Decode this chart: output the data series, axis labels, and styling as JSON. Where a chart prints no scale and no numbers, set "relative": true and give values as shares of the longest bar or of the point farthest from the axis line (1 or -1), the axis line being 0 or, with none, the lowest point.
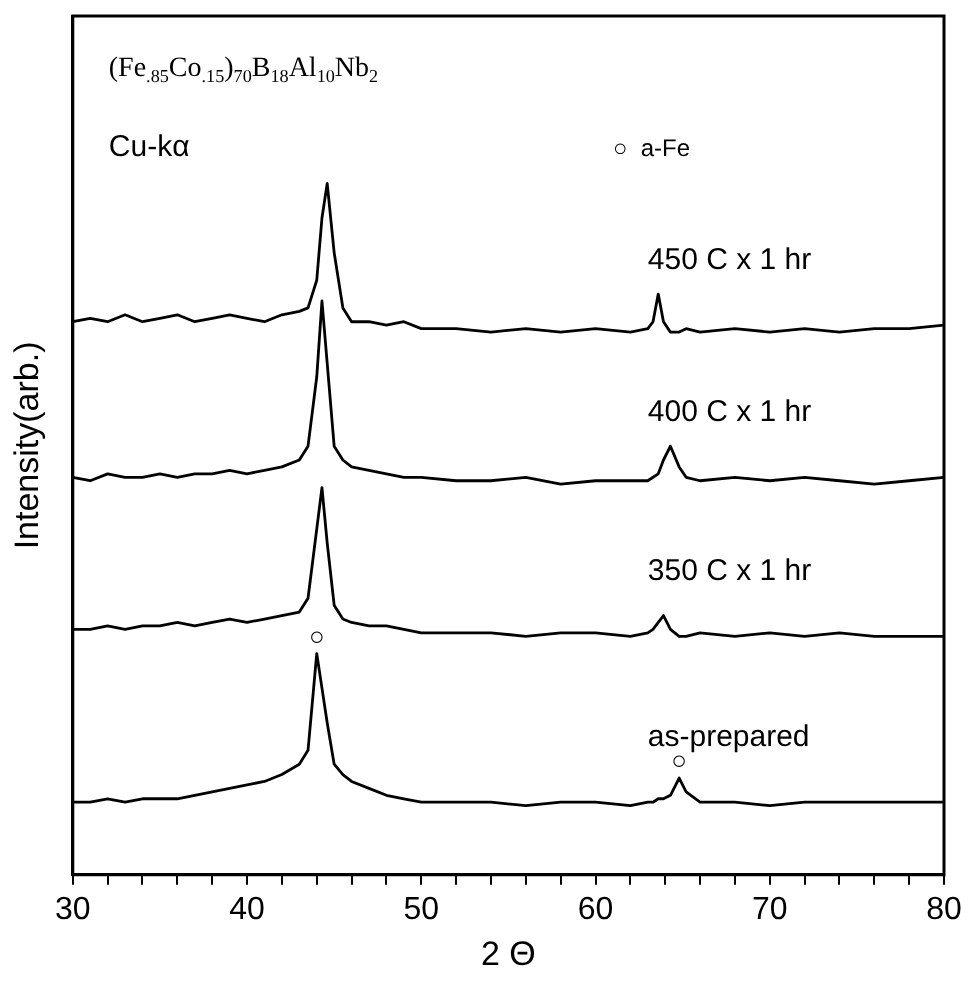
{
  "chart_data": {
    "type": "line",
    "title": "(Fe$_{.85}$Co$_{.15}$)$_{70}$B$_{18}$Al$_{10}$Nb$_{2}$",
    "xlabel": "2 Θ",
    "ylabel": "Intensity(arb.)",
    "relative": true,
    "legend": false,
    "grid": false,
    "marker": "none",
    "line_style": "solid",
    "xlim": [
      30,
      80
    ],
    "xticks": [
      30,
      {
        "value": 32,
        "label": null
      },
      {
        "value": 34,
        "label": null
      },
      {
        "value": 36,
        "label": null
      },
      {
        "value": 38,
        "label": null
      },
      40,
      {
        "value": 42,
        "label": null
      },
      {
        "value": 44,
        "label": null
      },
      {
        "value": 46,
        "label": null
      },
      {
        "value": 48,
        "label": null
      },
      50,
      {
        "value": 52,
        "label": null
      },
      {
        "value": 54,
        "label": null
      },
      {
        "value": 56,
        "label": null
      },
      {
        "value": 58,
        "label": null
      },
      60,
      {
        "value": 62,
        "label": null
      },
      {
        "value": 64,
        "label": null
      },
      {
        "value": 66,
        "label": null
      },
      {
        "value": 68,
        "label": null
      },
      70,
      {
        "value": 72,
        "label": null
      },
      {
        "value": 74,
        "label": null
      },
      {
        "value": 76,
        "label": null
      },
      {
        "value": 78,
        "label": null
      },
      80
    ],
    "x": [
      30,
      31,
      32,
      33,
      34,
      35,
      36,
      37,
      38,
      39,
      40,
      41,
      42,
      43,
      43.5,
      44,
      44.3,
      44.6,
      45,
      45.5,
      46,
      47,
      48,
      49,
      50,
      52,
      54,
      56,
      58,
      60,
      62,
      63,
      63.3,
      63.6,
      63.9,
      64.3,
      64.8,
      65.2,
      66,
      68,
      70,
      72,
      74,
      76,
      78,
      80
    ],
    "series": [
      {
        "name": "450 C x 1 hr",
        "color": "#000000",
        "values": [
          0.8,
          0.805,
          0.8,
          0.81,
          0.8,
          0.805,
          0.81,
          0.8,
          0.805,
          0.81,
          0.805,
          0.8,
          0.81,
          0.815,
          0.82,
          0.86,
          0.95,
          1,
          0.9,
          0.82,
          0.8,
          0.8,
          0.795,
          0.8,
          0.79,
          0.79,
          0.785,
          0.79,
          0.785,
          0.79,
          0.785,
          0.79,
          0.8,
          0.84,
          0.8,
          0.785,
          0.785,
          0.79,
          0.785,
          0.79,
          0.785,
          0.79,
          0.785,
          0.79,
          0.79,
          0.795
        ]
      },
      {
        "name": "400 C x 1 hr",
        "color": "#000000",
        "values": [
          0.575,
          0.57,
          0.58,
          0.575,
          0.575,
          0.58,
          0.575,
          0.58,
          0.58,
          0.585,
          0.58,
          0.585,
          0.59,
          0.6,
          0.62,
          0.72,
          0.83,
          0.74,
          0.62,
          0.6,
          0.59,
          0.585,
          0.58,
          0.575,
          0.575,
          0.57,
          0.57,
          0.575,
          0.565,
          0.57,
          0.57,
          0.57,
          0.575,
          0.58,
          0.6,
          0.62,
          0.59,
          0.575,
          0.57,
          0.575,
          0.57,
          0.575,
          0.57,
          0.565,
          0.57,
          0.575
        ]
      },
      {
        "name": "350 C x 1 hr",
        "color": "#000000",
        "values": [
          0.355,
          0.355,
          0.36,
          0.355,
          0.36,
          0.36,
          0.365,
          0.36,
          0.365,
          0.37,
          0.365,
          0.37,
          0.375,
          0.38,
          0.4,
          0.5,
          0.56,
          0.48,
          0.39,
          0.37,
          0.365,
          0.36,
          0.36,
          0.355,
          0.35,
          0.35,
          0.35,
          0.345,
          0.35,
          0.35,
          0.345,
          0.35,
          0.355,
          0.365,
          0.375,
          0.355,
          0.345,
          0.345,
          0.35,
          0.345,
          0.35,
          0.345,
          0.35,
          0.345,
          0.345,
          0.345
        ]
      },
      {
        "name": "as-prepared",
        "color": "#000000",
        "values": [
          0.105,
          0.105,
          0.11,
          0.105,
          0.11,
          0.11,
          0.11,
          0.115,
          0.12,
          0.125,
          0.13,
          0.135,
          0.145,
          0.16,
          0.18,
          0.32,
          0.27,
          0.22,
          0.16,
          0.145,
          0.135,
          0.125,
          0.115,
          0.11,
          0.105,
          0.105,
          0.105,
          0.1,
          0.105,
          0.105,
          0.1,
          0.105,
          0.105,
          0.11,
          0.11,
          0.115,
          0.14,
          0.12,
          0.105,
          0.105,
          0.1,
          0.105,
          0.105,
          0.105,
          0.105,
          0.105
        ]
      }
    ],
    "annotations": [
      "Cu-kα",
      "○  a-Fe",
      {
        "text": "○",
        "x": 44,
        "y": 0.32
      },
      {
        "text": "○",
        "x": 64.8,
        "y": 0.14
      }
    ]
  }
}
